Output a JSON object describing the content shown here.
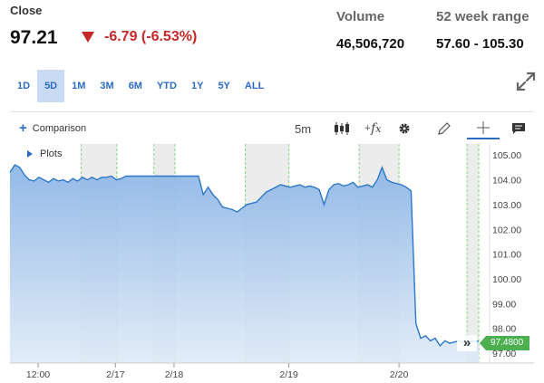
{
  "quote": {
    "close_label": "Close",
    "close_price": "97.21",
    "change": "-6.79 (-6.53%)",
    "volume_label": "Volume",
    "volume_value": "46,506,720",
    "range_label": "52 week range",
    "range_value": "57.60 - 105.30"
  },
  "ranges": [
    {
      "label": "1D",
      "active": false
    },
    {
      "label": "5D",
      "active": true
    },
    {
      "label": "1M",
      "active": false
    },
    {
      "label": "3M",
      "active": false
    },
    {
      "label": "6M",
      "active": false
    },
    {
      "label": "YTD",
      "active": false
    },
    {
      "label": "1Y",
      "active": false
    },
    {
      "label": "5Y",
      "active": false
    },
    {
      "label": "ALL",
      "active": false
    }
  ],
  "toolbar": {
    "comparison_label": "Comparison",
    "interval_label": "5m",
    "icons": [
      "candlestick-icon",
      "function-icon",
      "gear-icon",
      "pencil-icon",
      "crosshair-icon",
      "comment-icon"
    ]
  },
  "chart": {
    "plots_label": "Plots",
    "current_price_tag": "97.4800"
  },
  "colors": {
    "accent": "#2c6bc2",
    "negative": "#c62828",
    "line": "#2d77c8",
    "price_tag": "#4caf50"
  },
  "chart_data": {
    "type": "area",
    "x_tick_labels": [
      "12:00",
      "2/17",
      "2/18",
      "2/19",
      "2/20"
    ],
    "y_tick_labels": [
      "105.00",
      "104.00",
      "103.00",
      "102.00",
      "101.00",
      "100.00",
      "99.00",
      "98.00",
      "97.00"
    ],
    "ylim": [
      96.6,
      105.3
    ],
    "grid": false,
    "series": [
      {
        "values": [
          104.3,
          104.6,
          104.5,
          104.2,
          104.0,
          103.95,
          104.1,
          104.0,
          103.9,
          104.05,
          103.95,
          104.0,
          103.9,
          104.05,
          103.95,
          104.1,
          104.0,
          104.1,
          104.0,
          104.1,
          104.1,
          104.15,
          104.0,
          104.05,
          104.15,
          104.15,
          104.15,
          104.15,
          104.15,
          104.15,
          104.15,
          104.15,
          104.15,
          104.15,
          104.15,
          104.15,
          104.15,
          104.15,
          104.15,
          104.15,
          103.4,
          103.7,
          103.4,
          103.2,
          102.9,
          102.85,
          102.8,
          102.7,
          102.85,
          103.0,
          103.05,
          103.1,
          103.3,
          103.5,
          103.6,
          103.7,
          103.8,
          103.75,
          103.7,
          103.75,
          103.8,
          103.7,
          103.75,
          103.7,
          103.6,
          103.0,
          103.6,
          103.8,
          103.85,
          103.75,
          103.8,
          103.9,
          103.7,
          103.75,
          103.8,
          103.7,
          104.0,
          104.5,
          104.0,
          103.9,
          103.85,
          103.8,
          103.7,
          103.55,
          98.2,
          97.6,
          97.7,
          97.5,
          97.6,
          97.3,
          97.5,
          97.4,
          97.45,
          97.5,
          97.4,
          97.45,
          97.5,
          97.48
        ]
      }
    ]
  }
}
